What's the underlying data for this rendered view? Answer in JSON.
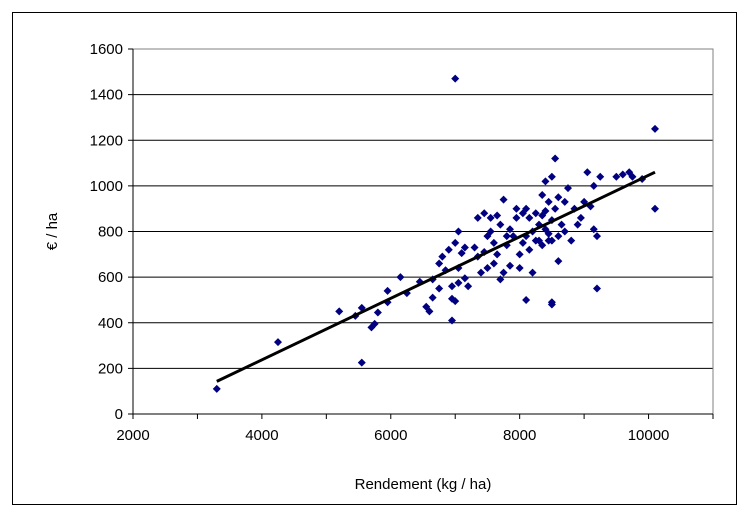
{
  "chart_data": {
    "type": "scatter",
    "title": "",
    "xlabel": "Rendement (kg / ha)",
    "ylabel": "€ / ha",
    "xlim": [
      2000,
      11000
    ],
    "ylim": [
      0,
      1600
    ],
    "x_ticks": [
      2000,
      4000,
      6000,
      8000,
      10000
    ],
    "y_ticks": [
      0,
      200,
      400,
      600,
      800,
      1000,
      1200,
      1400,
      1600
    ],
    "x_tick_labels": [
      "2000",
      "4000",
      "6000",
      "8000",
      "10000"
    ],
    "y_tick_labels": [
      "0",
      "200",
      "400",
      "600",
      "800",
      "1000",
      "1200",
      "1400",
      "1600"
    ],
    "grid": "horizontal",
    "legend": "none",
    "marker": "diamond",
    "colors": {
      "points": "#000080",
      "trendline": "#000000",
      "grid": "#000000"
    },
    "series": [
      {
        "points": [
          [
            3300,
            110
          ],
          [
            4250,
            315
          ],
          [
            5200,
            450
          ],
          [
            5450,
            430
          ],
          [
            5550,
            465
          ],
          [
            5550,
            225
          ],
          [
            5700,
            380
          ],
          [
            5750,
            395
          ],
          [
            5800,
            445
          ],
          [
            5950,
            490
          ],
          [
            5950,
            540
          ],
          [
            6150,
            600
          ],
          [
            6250,
            530
          ],
          [
            6450,
            580
          ],
          [
            6550,
            470
          ],
          [
            6600,
            450
          ],
          [
            6650,
            510
          ],
          [
            6650,
            590
          ],
          [
            6750,
            550
          ],
          [
            6750,
            660
          ],
          [
            6800,
            690
          ],
          [
            6850,
            630
          ],
          [
            6900,
            720
          ],
          [
            6950,
            505
          ],
          [
            6950,
            410
          ],
          [
            6950,
            560
          ],
          [
            7000,
            750
          ],
          [
            7000,
            495
          ],
          [
            7000,
            1470
          ],
          [
            7050,
            800
          ],
          [
            7050,
            575
          ],
          [
            7050,
            640
          ],
          [
            7100,
            705
          ],
          [
            7150,
            595
          ],
          [
            7150,
            730
          ],
          [
            7200,
            560
          ],
          [
            7300,
            730
          ],
          [
            7350,
            860
          ],
          [
            7350,
            690
          ],
          [
            7400,
            620
          ],
          [
            7450,
            880
          ],
          [
            7450,
            710
          ],
          [
            7500,
            640
          ],
          [
            7500,
            780
          ],
          [
            7550,
            800
          ],
          [
            7550,
            860
          ],
          [
            7600,
            750
          ],
          [
            7600,
            660
          ],
          [
            7650,
            870
          ],
          [
            7650,
            700
          ],
          [
            7700,
            590
          ],
          [
            7700,
            830
          ],
          [
            7750,
            940
          ],
          [
            7750,
            620
          ],
          [
            7800,
            740
          ],
          [
            7800,
            780
          ],
          [
            7850,
            810
          ],
          [
            7850,
            650
          ],
          [
            7900,
            780
          ],
          [
            7950,
            900
          ],
          [
            7950,
            860
          ],
          [
            8000,
            700
          ],
          [
            8000,
            640
          ],
          [
            8050,
            880
          ],
          [
            8050,
            750
          ],
          [
            8100,
            900
          ],
          [
            8100,
            780
          ],
          [
            8100,
            500
          ],
          [
            8150,
            720
          ],
          [
            8150,
            860
          ],
          [
            8200,
            620
          ],
          [
            8200,
            800
          ],
          [
            8250,
            760
          ],
          [
            8250,
            880
          ],
          [
            8300,
            830
          ],
          [
            8300,
            760
          ],
          [
            8350,
            960
          ],
          [
            8350,
            870
          ],
          [
            8350,
            740
          ],
          [
            8400,
            1020
          ],
          [
            8400,
            810
          ],
          [
            8400,
            890
          ],
          [
            8450,
            790
          ],
          [
            8450,
            930
          ],
          [
            8450,
            760
          ],
          [
            8500,
            1040
          ],
          [
            8500,
            490
          ],
          [
            8500,
            480
          ],
          [
            8500,
            760
          ],
          [
            8500,
            850
          ],
          [
            8550,
            1120
          ],
          [
            8550,
            900
          ],
          [
            8600,
            670
          ],
          [
            8600,
            780
          ],
          [
            8600,
            950
          ],
          [
            8650,
            830
          ],
          [
            8700,
            800
          ],
          [
            8700,
            930
          ],
          [
            8750,
            990
          ],
          [
            8800,
            760
          ],
          [
            8850,
            900
          ],
          [
            8900,
            830
          ],
          [
            8950,
            860
          ],
          [
            9000,
            930
          ],
          [
            9050,
            1060
          ],
          [
            9100,
            910
          ],
          [
            9150,
            1000
          ],
          [
            9150,
            810
          ],
          [
            9200,
            550
          ],
          [
            9200,
            780
          ],
          [
            9250,
            1040
          ],
          [
            9500,
            1040
          ],
          [
            9600,
            1050
          ],
          [
            9700,
            1060
          ],
          [
            9750,
            1040
          ],
          [
            9900,
            1030
          ],
          [
            10100,
            1250
          ],
          [
            10100,
            900
          ]
        ]
      }
    ],
    "trendline": {
      "x": [
        3300,
        10100
      ],
      "y": [
        143,
        1060
      ]
    }
  }
}
